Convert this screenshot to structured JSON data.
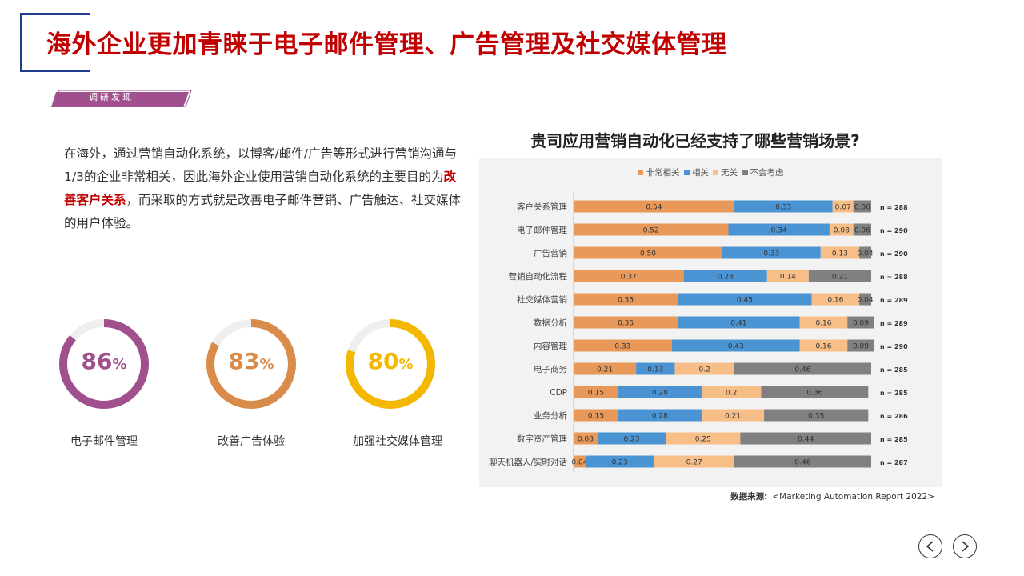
{
  "page": {
    "title": "海外企业更加青睐于电子邮件管理、广告管理及社交媒体管理",
    "tag": "调研发现",
    "intro": {
      "part1": "在海外，通过营销自动化系统，以博客/邮件/广告等形式进行营销沟通与1/3的企业非常相关，因此海外企业使用营销自动化系统的主要目的为",
      "highlight": "改善客户关系",
      "part2": "，而采取的方式就是改善电子邮件营销、广告触达、社交媒体的用户体验。"
    },
    "stats": [
      {
        "value": "86",
        "unit": "%",
        "label": "电子邮件管理",
        "fraction": 0.86,
        "color": "#a0508c"
      },
      {
        "value": "83",
        "unit": "%",
        "label": "改善广告体验",
        "fraction": 0.83,
        "color": "#d98c4a"
      },
      {
        "value": "80",
        "unit": "%",
        "label": "加强社交媒体管理",
        "fraction": 0.8,
        "color": "#f5b800"
      }
    ],
    "source_label": "数据来源:",
    "source_text": "<Marketing Automation Report 2022>"
  },
  "chart_data": {
    "type": "bar",
    "orientation": "horizontal-stacked",
    "title": "贵司应用营销自动化已经支持了哪些营销场景?",
    "legend_position": "top",
    "grid": false,
    "categories": [
      "客户关系管理",
      "电子邮件管理",
      "广告营销",
      "营销自动化流程",
      "社交媒体营销",
      "数据分析",
      "内容管理",
      "电子商务",
      "CDP",
      "业务分析",
      "数字资产管理",
      "聊天机器人/实时对话"
    ],
    "series": [
      {
        "name": "非常相关",
        "color": "#e8995a",
        "values": [
          0.54,
          0.52,
          0.5,
          0.37,
          0.35,
          0.35,
          0.33,
          0.21,
          0.15,
          0.15,
          0.08,
          0.04
        ],
        "labels": [
          "0.54",
          "0.52",
          "0.50",
          "0.37",
          "0.35",
          "0.35",
          "0.33",
          "0.21",
          "0.15",
          "0.15",
          "0.08",
          "0.04"
        ]
      },
      {
        "name": "相关",
        "color": "#4a94d4",
        "values": [
          0.33,
          0.34,
          0.33,
          0.28,
          0.45,
          0.41,
          0.43,
          0.13,
          0.28,
          0.28,
          0.23,
          0.23
        ],
        "labels": [
          "0.33",
          "0.34",
          "0.33",
          "0.28",
          "0.45",
          "0.41",
          "0.43",
          "0.13",
          "0.28",
          "0.28",
          "0.23",
          "0.23"
        ]
      },
      {
        "name": "无关",
        "color": "#f8be88",
        "values": [
          0.07,
          0.08,
          0.13,
          0.14,
          0.16,
          0.16,
          0.16,
          0.2,
          0.2,
          0.21,
          0.25,
          0.27
        ],
        "labels": [
          "0.07",
          "0.08",
          "0.13",
          "0.14",
          "0.16",
          "0.16",
          "0.16",
          "0.2",
          "0.2",
          "0.21",
          "0.25",
          "0.27"
        ]
      },
      {
        "name": "不会考虑",
        "color": "#808080",
        "values": [
          0.06,
          0.06,
          0.04,
          0.21,
          0.04,
          0.09,
          0.09,
          0.46,
          0.36,
          0.35,
          0.44,
          0.46
        ],
        "labels": [
          "0.06",
          "0.06",
          "0.04",
          "0.21",
          "0.04",
          "0.09",
          "0.09",
          "0.46",
          "0.36",
          "0.35",
          "0.44",
          "0.46"
        ]
      }
    ],
    "n_labels": [
      "n = 288",
      "n = 290",
      "n = 290",
      "n = 288",
      "n = 289",
      "n = 289",
      "n = 290",
      "n = 285",
      "n = 285",
      "n = 286",
      "n = 285",
      "n = 287"
    ]
  }
}
